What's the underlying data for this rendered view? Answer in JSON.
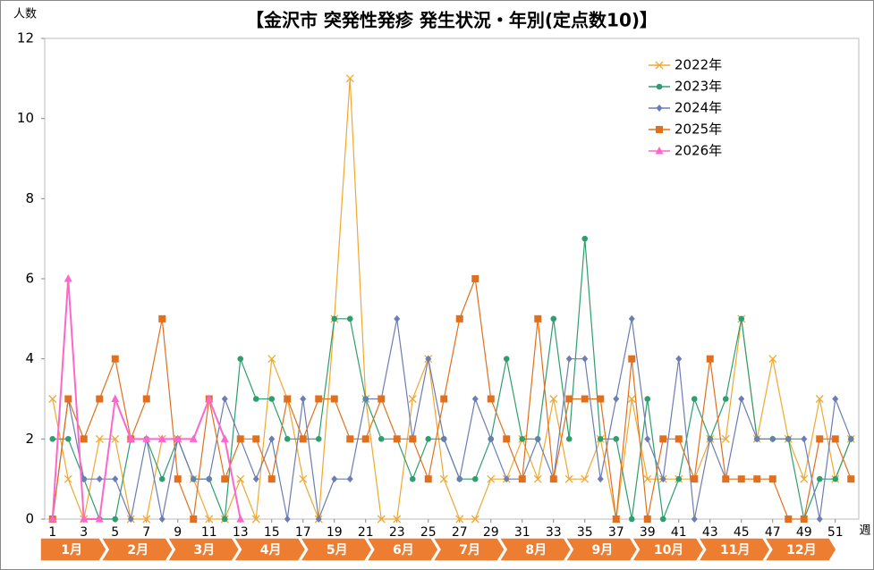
{
  "chart_data": {
    "type": "line",
    "title": "【金沢市 突発性発疹 発生状況・年別(定点数10)】",
    "y_label": "人数",
    "x_label": "週",
    "x": [
      1,
      2,
      3,
      4,
      5,
      6,
      7,
      8,
      9,
      10,
      11,
      12,
      13,
      14,
      15,
      16,
      17,
      18,
      19,
      20,
      21,
      22,
      23,
      24,
      25,
      26,
      27,
      28,
      29,
      30,
      31,
      32,
      33,
      34,
      35,
      36,
      37,
      38,
      39,
      40,
      41,
      42,
      43,
      44,
      45,
      46,
      47,
      48,
      49,
      50,
      51,
      52
    ],
    "xlim": [
      0.5,
      52.5
    ],
    "xticks": [
      1,
      3,
      5,
      7,
      9,
      11,
      13,
      15,
      17,
      19,
      21,
      23,
      25,
      27,
      29,
      31,
      33,
      35,
      37,
      39,
      41,
      43,
      45,
      47,
      49,
      51
    ],
    "ylim": [
      0,
      12
    ],
    "yticks": [
      0,
      2,
      4,
      6,
      8,
      10,
      12
    ],
    "grid": false,
    "legend": "top-right",
    "months": [
      "1月",
      "2月",
      "3月",
      "4月",
      "5月",
      "6月",
      "7月",
      "8月",
      "9月",
      "10月",
      "11月",
      "12月"
    ],
    "series": [
      {
        "name": "2022年",
        "color": "#f0a830",
        "marker": "x",
        "values": [
          3,
          1,
          0,
          2,
          2,
          0,
          0,
          2,
          2,
          1,
          0,
          0,
          1,
          0,
          4,
          3,
          1,
          0,
          5,
          11,
          3,
          0,
          0,
          3,
          4,
          1,
          0,
          0,
          1,
          1,
          2,
          1,
          3,
          1,
          1,
          2,
          0,
          3,
          1,
          1,
          1,
          1,
          2,
          2,
          5,
          2,
          4,
          2,
          1,
          3,
          1,
          2
        ]
      },
      {
        "name": "2023年",
        "color": "#2e9e6e",
        "marker": "circle",
        "values": [
          2,
          2,
          1,
          0,
          0,
          2,
          2,
          1,
          2,
          1,
          1,
          0,
          4,
          3,
          3,
          2,
          2,
          2,
          5,
          5,
          3,
          2,
          2,
          1,
          2,
          2,
          1,
          1,
          2,
          4,
          2,
          2,
          5,
          2,
          7,
          2,
          2,
          0,
          3,
          0,
          1,
          3,
          2,
          3,
          5,
          2,
          2,
          2,
          0,
          1,
          1,
          2
        ]
      },
      {
        "name": "2024年",
        "color": "#6b7db3",
        "marker": "diamond",
        "values": [
          0,
          3,
          1,
          1,
          1,
          0,
          2,
          0,
          2,
          1,
          1,
          3,
          2,
          1,
          2,
          0,
          3,
          0,
          1,
          1,
          3,
          3,
          5,
          2,
          4,
          2,
          1,
          3,
          2,
          1,
          1,
          2,
          1,
          4,
          4,
          1,
          3,
          5,
          2,
          1,
          4,
          0,
          2,
          1,
          3,
          2,
          2,
          2,
          2,
          0,
          3,
          2
        ]
      },
      {
        "name": "2025年",
        "color": "#e0701e",
        "marker": "square",
        "values": [
          0,
          3,
          2,
          3,
          4,
          2,
          3,
          5,
          1,
          0,
          3,
          1,
          2,
          2,
          1,
          3,
          2,
          3,
          3,
          2,
          2,
          3,
          2,
          2,
          1,
          3,
          5,
          6,
          3,
          2,
          1,
          5,
          1,
          3,
          3,
          3,
          0,
          4,
          0,
          2,
          2,
          1,
          4,
          1,
          1,
          1,
          1,
          0,
          0,
          2,
          2,
          1
        ]
      },
      {
        "name": "2026年",
        "color": "#ff66cc",
        "marker": "triangle",
        "values": [
          0,
          6,
          0,
          0,
          3,
          2,
          2,
          2,
          2,
          2,
          3,
          2,
          0,
          null,
          null,
          null,
          null,
          null,
          null,
          null,
          null,
          null,
          null,
          null,
          null,
          null,
          null,
          null,
          null,
          null,
          null,
          null,
          null,
          null,
          null,
          null,
          null,
          null,
          null,
          null,
          null,
          null,
          null,
          null,
          null,
          null,
          null,
          null,
          null,
          null,
          null,
          null
        ]
      }
    ]
  }
}
